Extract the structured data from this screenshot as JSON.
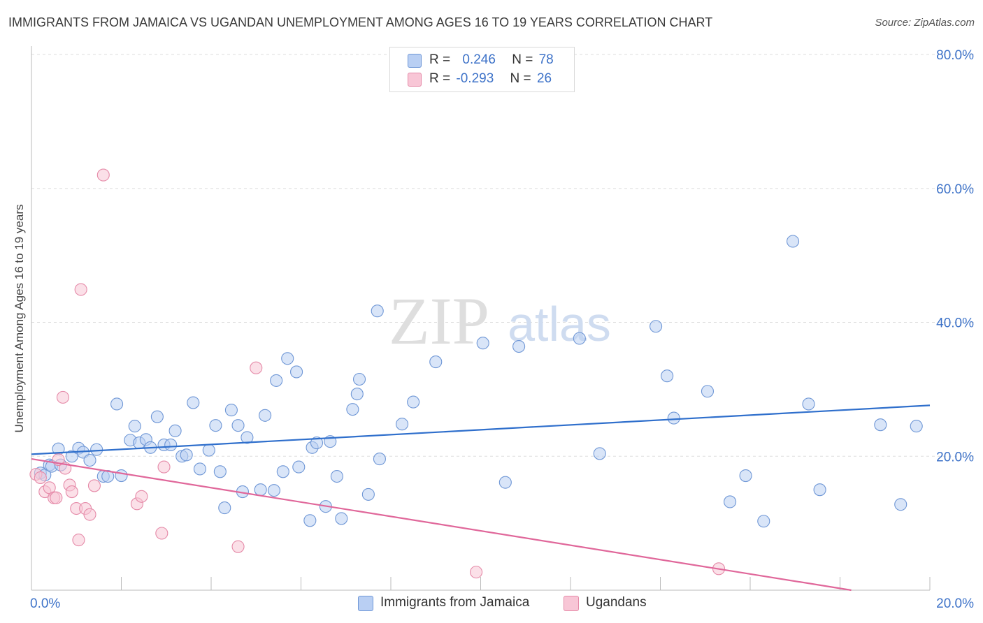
{
  "title": "IMMIGRANTS FROM JAMAICA VS UGANDAN UNEMPLOYMENT AMONG AGES 16 TO 19 YEARS CORRELATION CHART",
  "source": "Source: ZipAtlas.com",
  "watermark": {
    "zip": "ZIP",
    "atlas": "atlas"
  },
  "stats": {
    "rows": [
      {
        "r_label": "R =",
        "r_value": "0.246",
        "n_label": "N =",
        "n_value": "78"
      },
      {
        "r_label": "R =",
        "r_value": "-0.293",
        "n_label": "N =",
        "n_value": "26"
      }
    ]
  },
  "legend": {
    "items": [
      "Immigrants from Jamaica",
      "Ugandans"
    ]
  },
  "colors": {
    "jamaica_fill": "#b9cff3",
    "jamaica_stroke": "#6f97d6",
    "jamaica_line": "#2f6fcc",
    "uganda_fill": "#f8c6d6",
    "uganda_stroke": "#e58aa8",
    "uganda_line": "#e0679a",
    "tick_label": "#3d72c8",
    "grid": "#dddddd"
  },
  "chart_data": {
    "type": "scatter",
    "title": "IMMIGRANTS FROM JAMAICA VS UGANDAN UNEMPLOYMENT AMONG AGES 16 TO 19 YEARS CORRELATION CHART",
    "xlabel": "",
    "ylabel": "Unemployment Among Ages 16 to 19 years",
    "xlim": [
      0,
      20
    ],
    "ylim": [
      0,
      80
    ],
    "x_tick_labels": [
      "0.0%",
      "20.0%"
    ],
    "y_ticks": [
      20,
      40,
      60,
      80
    ],
    "y_tick_labels": [
      "20.0%",
      "40.0%",
      "60.0%",
      "80.0%"
    ],
    "grid": true,
    "legend_position": "bottom-center",
    "series": [
      {
        "name": "Immigrants from Jamaica",
        "r": 0.246,
        "n": 78,
        "trend": [
          [
            0,
            20.3
          ],
          [
            20,
            27.6
          ]
        ],
        "points": [
          [
            0.2,
            17.5
          ],
          [
            0.3,
            17.2
          ],
          [
            0.4,
            18.7
          ],
          [
            0.45,
            18.5
          ],
          [
            0.6,
            21.1
          ],
          [
            0.65,
            18.7
          ],
          [
            0.9,
            20.0
          ],
          [
            1.05,
            21.2
          ],
          [
            1.15,
            20.6
          ],
          [
            1.3,
            19.4
          ],
          [
            1.45,
            21.0
          ],
          [
            1.6,
            17.0
          ],
          [
            1.7,
            17.0
          ],
          [
            1.9,
            27.8
          ],
          [
            2.0,
            17.1
          ],
          [
            2.2,
            22.4
          ],
          [
            2.3,
            24.5
          ],
          [
            2.4,
            22.0
          ],
          [
            2.55,
            22.5
          ],
          [
            2.65,
            21.3
          ],
          [
            2.8,
            25.9
          ],
          [
            2.95,
            21.7
          ],
          [
            3.1,
            21.7
          ],
          [
            3.2,
            23.8
          ],
          [
            3.35,
            20.0
          ],
          [
            3.45,
            20.2
          ],
          [
            3.6,
            28.0
          ],
          [
            3.75,
            18.1
          ],
          [
            3.95,
            20.9
          ],
          [
            4.1,
            24.6
          ],
          [
            4.2,
            17.7
          ],
          [
            4.3,
            12.3
          ],
          [
            4.45,
            26.9
          ],
          [
            4.6,
            24.6
          ],
          [
            4.7,
            14.7
          ],
          [
            4.8,
            22.8
          ],
          [
            5.1,
            15.0
          ],
          [
            5.2,
            26.1
          ],
          [
            5.4,
            14.9
          ],
          [
            5.45,
            31.3
          ],
          [
            5.6,
            17.7
          ],
          [
            5.7,
            34.6
          ],
          [
            5.9,
            32.6
          ],
          [
            5.95,
            18.4
          ],
          [
            6.2,
            10.4
          ],
          [
            6.25,
            21.3
          ],
          [
            6.35,
            22.0
          ],
          [
            6.55,
            12.5
          ],
          [
            6.65,
            22.2
          ],
          [
            6.8,
            17.0
          ],
          [
            6.9,
            10.7
          ],
          [
            7.15,
            27.0
          ],
          [
            7.25,
            29.3
          ],
          [
            7.3,
            31.5
          ],
          [
            7.5,
            14.3
          ],
          [
            7.7,
            41.7
          ],
          [
            7.75,
            19.6
          ],
          [
            8.25,
            24.8
          ],
          [
            8.5,
            28.1
          ],
          [
            9.0,
            34.1
          ],
          [
            10.05,
            36.9
          ],
          [
            10.55,
            16.1
          ],
          [
            10.85,
            36.4
          ],
          [
            12.2,
            37.6
          ],
          [
            12.65,
            20.4
          ],
          [
            13.9,
            39.4
          ],
          [
            14.15,
            32.0
          ],
          [
            14.3,
            25.7
          ],
          [
            15.05,
            29.7
          ],
          [
            15.55,
            13.2
          ],
          [
            15.9,
            17.1
          ],
          [
            16.3,
            10.3
          ],
          [
            16.95,
            52.1
          ],
          [
            17.3,
            27.8
          ],
          [
            17.55,
            15.0
          ],
          [
            18.9,
            24.7
          ],
          [
            19.35,
            12.8
          ],
          [
            19.7,
            24.5
          ]
        ]
      },
      {
        "name": "Ugandans",
        "r": -0.293,
        "n": 26,
        "trend": [
          [
            0,
            19.6
          ],
          [
            18.25,
            0
          ]
        ],
        "points": [
          [
            0.1,
            17.3
          ],
          [
            0.2,
            16.8
          ],
          [
            0.3,
            14.7
          ],
          [
            0.4,
            15.3
          ],
          [
            0.5,
            13.8
          ],
          [
            0.55,
            13.8
          ],
          [
            0.6,
            19.5
          ],
          [
            0.7,
            28.8
          ],
          [
            0.75,
            18.2
          ],
          [
            0.85,
            15.7
          ],
          [
            0.9,
            14.7
          ],
          [
            1.0,
            12.2
          ],
          [
            1.05,
            7.5
          ],
          [
            1.1,
            44.9
          ],
          [
            1.2,
            12.2
          ],
          [
            1.3,
            11.3
          ],
          [
            1.4,
            15.6
          ],
          [
            1.6,
            62.0
          ],
          [
            2.35,
            12.9
          ],
          [
            2.45,
            14.0
          ],
          [
            2.9,
            8.5
          ],
          [
            2.95,
            18.4
          ],
          [
            4.6,
            6.5
          ],
          [
            5.0,
            33.2
          ],
          [
            9.9,
            2.7
          ],
          [
            15.3,
            3.2
          ]
        ]
      }
    ]
  }
}
